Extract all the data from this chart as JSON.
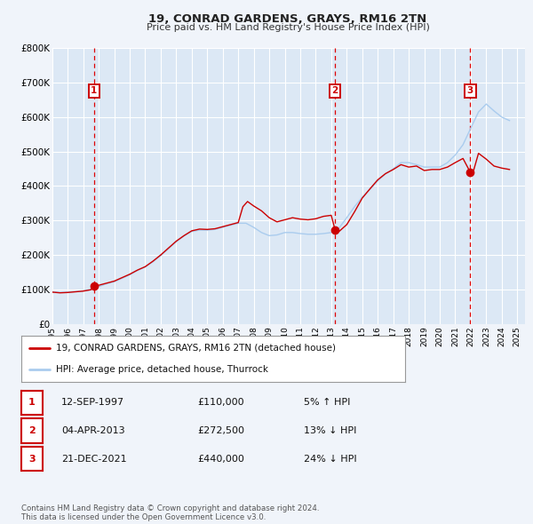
{
  "title": "19, CONRAD GARDENS, GRAYS, RM16 2TN",
  "subtitle": "Price paid vs. HM Land Registry's House Price Index (HPI)",
  "xlim": [
    1995,
    2025.5
  ],
  "ylim": [
    0,
    800000
  ],
  "yticks": [
    0,
    100000,
    200000,
    300000,
    400000,
    500000,
    600000,
    700000,
    800000
  ],
  "ytick_labels": [
    "£0",
    "£100K",
    "£200K",
    "£300K",
    "£400K",
    "£500K",
    "£600K",
    "£700K",
    "£800K"
  ],
  "xtick_values": [
    1995,
    1996,
    1997,
    1998,
    1999,
    2000,
    2001,
    2002,
    2003,
    2004,
    2005,
    2006,
    2007,
    2008,
    2009,
    2010,
    2011,
    2012,
    2013,
    2014,
    2015,
    2016,
    2017,
    2018,
    2019,
    2020,
    2021,
    2022,
    2023,
    2024,
    2025
  ],
  "xtick_labels": [
    "1995",
    "1996",
    "1997",
    "1998",
    "1999",
    "2000",
    "2001",
    "2002",
    "2003",
    "2004",
    "2005",
    "2006",
    "2007",
    "2008",
    "2009",
    "2010",
    "2011",
    "2012",
    "2013",
    "2014",
    "2015",
    "2016",
    "2017",
    "2018",
    "2019",
    "2020",
    "2021",
    "2022",
    "2023",
    "2024",
    "2025"
  ],
  "bg_color": "#f0f4fa",
  "plot_bg_color": "#dce8f5",
  "grid_color": "#ffffff",
  "red_line_color": "#cc0000",
  "blue_line_color": "#aaccee",
  "sale_dot_color": "#cc0000",
  "vline_color": "#dd0000",
  "number_box_color": "#cc0000",
  "hpi_anchors": [
    [
      1995.0,
      93000
    ],
    [
      1995.5,
      91000
    ],
    [
      1996.0,
      92000
    ],
    [
      1996.5,
      94000
    ],
    [
      1997.0,
      96000
    ],
    [
      1997.5,
      100000
    ],
    [
      1998.0,
      108000
    ],
    [
      1998.5,
      116000
    ],
    [
      1999.0,
      122000
    ],
    [
      1999.5,
      132000
    ],
    [
      2000.0,
      142000
    ],
    [
      2000.5,
      155000
    ],
    [
      2001.0,
      165000
    ],
    [
      2001.5,
      180000
    ],
    [
      2002.0,
      198000
    ],
    [
      2002.5,
      218000
    ],
    [
      2003.0,
      238000
    ],
    [
      2003.5,
      255000
    ],
    [
      2004.0,
      268000
    ],
    [
      2004.5,
      272000
    ],
    [
      2005.0,
      272000
    ],
    [
      2005.5,
      274000
    ],
    [
      2006.0,
      280000
    ],
    [
      2006.5,
      286000
    ],
    [
      2007.0,
      292000
    ],
    [
      2007.5,
      292000
    ],
    [
      2008.0,
      280000
    ],
    [
      2008.5,
      265000
    ],
    [
      2009.0,
      256000
    ],
    [
      2009.5,
      258000
    ],
    [
      2010.0,
      265000
    ],
    [
      2010.5,
      265000
    ],
    [
      2011.0,
      262000
    ],
    [
      2011.5,
      260000
    ],
    [
      2012.0,
      260000
    ],
    [
      2012.5,
      262000
    ],
    [
      2013.0,
      265000
    ],
    [
      2013.5,
      278000
    ],
    [
      2014.0,
      308000
    ],
    [
      2014.5,
      340000
    ],
    [
      2015.0,
      368000
    ],
    [
      2015.5,
      390000
    ],
    [
      2016.0,
      415000
    ],
    [
      2016.5,
      435000
    ],
    [
      2017.0,
      450000
    ],
    [
      2017.5,
      468000
    ],
    [
      2018.0,
      468000
    ],
    [
      2018.5,
      462000
    ],
    [
      2019.0,
      455000
    ],
    [
      2019.5,
      455000
    ],
    [
      2020.0,
      455000
    ],
    [
      2020.5,
      468000
    ],
    [
      2021.0,
      490000
    ],
    [
      2021.5,
      520000
    ],
    [
      2022.0,
      568000
    ],
    [
      2022.5,
      615000
    ],
    [
      2023.0,
      638000
    ],
    [
      2023.5,
      618000
    ],
    [
      2024.0,
      600000
    ],
    [
      2024.5,
      590000
    ]
  ],
  "red_anchors": [
    [
      1995.0,
      92000
    ],
    [
      1995.5,
      90000
    ],
    [
      1996.0,
      91000
    ],
    [
      1996.5,
      93000
    ],
    [
      1997.0,
      95000
    ],
    [
      1997.5,
      99000
    ],
    [
      1997.7,
      110000
    ],
    [
      1998.0,
      112000
    ],
    [
      1998.5,
      118000
    ],
    [
      1999.0,
      124000
    ],
    [
      1999.5,
      134000
    ],
    [
      2000.0,
      144000
    ],
    [
      2000.5,
      156000
    ],
    [
      2001.0,
      166000
    ],
    [
      2001.5,
      182000
    ],
    [
      2002.0,
      200000
    ],
    [
      2002.5,
      220000
    ],
    [
      2003.0,
      240000
    ],
    [
      2003.5,
      256000
    ],
    [
      2004.0,
      270000
    ],
    [
      2004.5,
      275000
    ],
    [
      2005.0,
      274000
    ],
    [
      2005.5,
      276000
    ],
    [
      2006.0,
      282000
    ],
    [
      2006.5,
      288000
    ],
    [
      2007.0,
      294000
    ],
    [
      2007.3,
      340000
    ],
    [
      2007.6,
      355000
    ],
    [
      2008.0,
      342000
    ],
    [
      2008.5,
      328000
    ],
    [
      2009.0,
      308000
    ],
    [
      2009.5,
      296000
    ],
    [
      2010.0,
      302000
    ],
    [
      2010.5,
      308000
    ],
    [
      2011.0,
      304000
    ],
    [
      2011.5,
      302000
    ],
    [
      2012.0,
      305000
    ],
    [
      2012.5,
      312000
    ],
    [
      2013.0,
      315000
    ],
    [
      2013.25,
      272500
    ],
    [
      2013.5,
      268000
    ],
    [
      2014.0,
      288000
    ],
    [
      2014.5,
      325000
    ],
    [
      2015.0,
      365000
    ],
    [
      2015.5,
      392000
    ],
    [
      2016.0,
      418000
    ],
    [
      2016.5,
      436000
    ],
    [
      2017.0,
      448000
    ],
    [
      2017.5,
      462000
    ],
    [
      2018.0,
      455000
    ],
    [
      2018.5,
      458000
    ],
    [
      2019.0,
      445000
    ],
    [
      2019.5,
      448000
    ],
    [
      2020.0,
      448000
    ],
    [
      2020.5,
      455000
    ],
    [
      2021.0,
      468000
    ],
    [
      2021.5,
      480000
    ],
    [
      2021.97,
      440000
    ],
    [
      2022.1,
      432000
    ],
    [
      2022.5,
      495000
    ],
    [
      2023.0,
      478000
    ],
    [
      2023.5,
      458000
    ],
    [
      2024.0,
      452000
    ],
    [
      2024.5,
      448000
    ]
  ],
  "sale_points": [
    {
      "year": 1997.7,
      "value": 110000,
      "label": "1"
    },
    {
      "year": 2013.25,
      "value": 272500,
      "label": "2"
    },
    {
      "year": 2021.97,
      "value": 440000,
      "label": "3"
    }
  ],
  "legend_entries": [
    {
      "label": "19, CONRAD GARDENS, GRAYS, RM16 2TN (detached house)",
      "color": "#cc0000"
    },
    {
      "label": "HPI: Average price, detached house, Thurrock",
      "color": "#aaccee"
    }
  ],
  "table_rows": [
    {
      "num": "1",
      "date": "12-SEP-1997",
      "price": "£110,000",
      "hpi": "5% ↑ HPI"
    },
    {
      "num": "2",
      "date": "04-APR-2013",
      "price": "£272,500",
      "hpi": "13% ↓ HPI"
    },
    {
      "num": "3",
      "date": "21-DEC-2021",
      "price": "£440,000",
      "hpi": "24% ↓ HPI"
    }
  ],
  "footnote": "Contains HM Land Registry data © Crown copyright and database right 2024.\nThis data is licensed under the Open Government Licence v3.0."
}
